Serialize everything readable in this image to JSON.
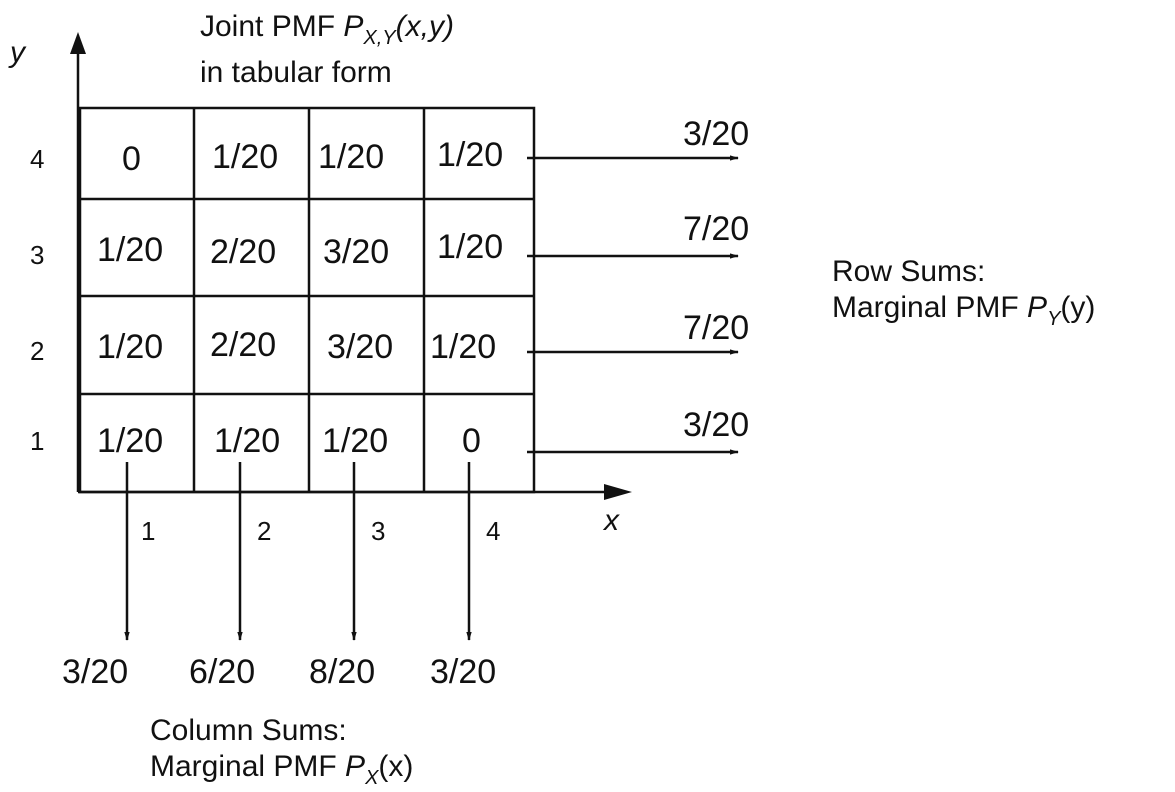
{
  "title": {
    "line1_prefix": "Joint PMF ",
    "symbol": "P",
    "subscript": "X,Y",
    "args": "(x,y)",
    "line2": "in tabular form"
  },
  "axes": {
    "y_label": "y",
    "x_label": "x",
    "y_ticks": [
      "4",
      "3",
      "2",
      "1"
    ],
    "x_ticks": [
      "1",
      "2",
      "3",
      "4"
    ]
  },
  "table": {
    "rows": [
      {
        "y": "4",
        "cells": [
          "0",
          "1/20",
          "1/20",
          "1/20"
        ]
      },
      {
        "y": "3",
        "cells": [
          "1/20",
          "2/20",
          "3/20",
          "1/20"
        ]
      },
      {
        "y": "2",
        "cells": [
          "1/20",
          "2/20",
          "3/20",
          "1/20"
        ]
      },
      {
        "y": "1",
        "cells": [
          "1/20",
          "1/20",
          "1/20",
          "0"
        ]
      }
    ]
  },
  "row_sums": {
    "values": [
      "3/20",
      "7/20",
      "7/20",
      "3/20"
    ],
    "caption_line1": "Row Sums:",
    "caption_line2_prefix": "Marginal PMF ",
    "symbol": "P",
    "subscript": "Y",
    "args": "(y)"
  },
  "column_sums": {
    "values": [
      "3/20",
      "6/20",
      "8/20",
      "3/20"
    ],
    "caption_line1": "Column Sums:",
    "caption_line2_prefix": "Marginal PMF ",
    "symbol": "P",
    "subscript": "X",
    "args": "(x)"
  }
}
